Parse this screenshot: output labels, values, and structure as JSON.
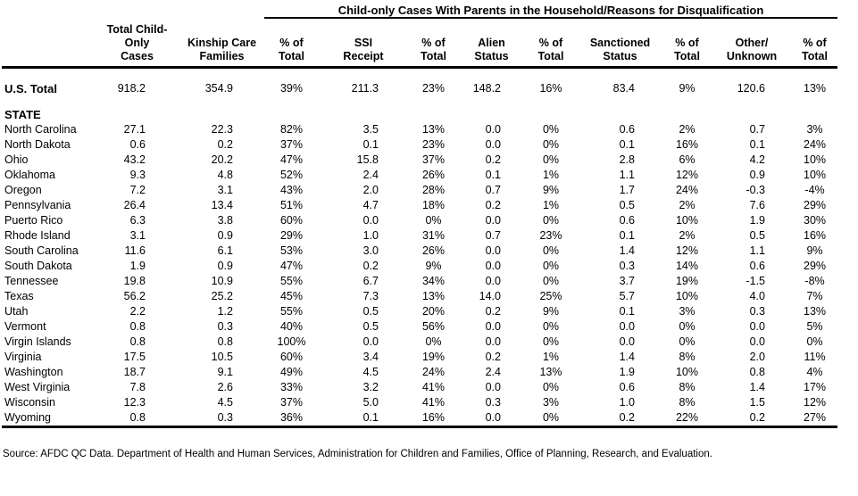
{
  "table": {
    "group_header": "Child-only Cases With Parents in the Household/Reasons for Disqualification",
    "columns": [
      {
        "line1": "",
        "line2": ""
      },
      {
        "line1": "Total Child-Only",
        "line2": "Cases"
      },
      {
        "line1": "Kinship Care",
        "line2": "Families"
      },
      {
        "line1": "% of",
        "line2": "Total"
      },
      {
        "line1": "SSI",
        "line2": "Receipt"
      },
      {
        "line1": "% of",
        "line2": "Total"
      },
      {
        "line1": "Alien",
        "line2": "Status"
      },
      {
        "line1": "% of",
        "line2": "Total"
      },
      {
        "line1": "Sanctioned",
        "line2": "Status"
      },
      {
        "line1": "% of",
        "line2": "Total"
      },
      {
        "line1": "Other/",
        "line2": "Unknown"
      },
      {
        "line1": "% of",
        "line2": "Total"
      }
    ],
    "us_total": {
      "label": "U.S. Total",
      "values": [
        "918.2",
        "354.9",
        "39%",
        "211.3",
        "23%",
        "148.2",
        "16%",
        "83.4",
        "9%",
        "120.6",
        "13%"
      ]
    },
    "section_label": "STATE",
    "rows": [
      {
        "state": "North Carolina",
        "values": [
          "27.1",
          "22.3",
          "82%",
          "3.5",
          "13%",
          "0.0",
          "0%",
          "0.6",
          "2%",
          "0.7",
          "3%"
        ]
      },
      {
        "state": "North Dakota",
        "values": [
          "0.6",
          "0.2",
          "37%",
          "0.1",
          "23%",
          "0.0",
          "0%",
          "0.1",
          "16%",
          "0.1",
          "24%"
        ]
      },
      {
        "state": "Ohio",
        "values": [
          "43.2",
          "20.2",
          "47%",
          "15.8",
          "37%",
          "0.2",
          "0%",
          "2.8",
          "6%",
          "4.2",
          "10%"
        ]
      },
      {
        "state": "Oklahoma",
        "values": [
          "9.3",
          "4.8",
          "52%",
          "2.4",
          "26%",
          "0.1",
          "1%",
          "1.1",
          "12%",
          "0.9",
          "10%"
        ]
      },
      {
        "state": "Oregon",
        "values": [
          "7.2",
          "3.1",
          "43%",
          "2.0",
          "28%",
          "0.7",
          "9%",
          "1.7",
          "24%",
          "-0.3",
          "-4%"
        ]
      },
      {
        "state": "Pennsylvania",
        "values": [
          "26.4",
          "13.4",
          "51%",
          "4.7",
          "18%",
          "0.2",
          "1%",
          "0.5",
          "2%",
          "7.6",
          "29%"
        ]
      },
      {
        "state": "Puerto Rico",
        "values": [
          "6.3",
          "3.8",
          "60%",
          "0.0",
          "0%",
          "0.0",
          "0%",
          "0.6",
          "10%",
          "1.9",
          "30%"
        ]
      },
      {
        "state": "Rhode Island",
        "values": [
          "3.1",
          "0.9",
          "29%",
          "1.0",
          "31%",
          "0.7",
          "23%",
          "0.1",
          "2%",
          "0.5",
          "16%"
        ]
      },
      {
        "state": "South Carolina",
        "values": [
          "11.6",
          "6.1",
          "53%",
          "3.0",
          "26%",
          "0.0",
          "0%",
          "1.4",
          "12%",
          "1.1",
          "9%"
        ]
      },
      {
        "state": "South Dakota",
        "values": [
          "1.9",
          "0.9",
          "47%",
          "0.2",
          "9%",
          "0.0",
          "0%",
          "0.3",
          "14%",
          "0.6",
          "29%"
        ]
      },
      {
        "state": "Tennessee",
        "values": [
          "19.8",
          "10.9",
          "55%",
          "6.7",
          "34%",
          "0.0",
          "0%",
          "3.7",
          "19%",
          "-1.5",
          "-8%"
        ]
      },
      {
        "state": "Texas",
        "values": [
          "56.2",
          "25.2",
          "45%",
          "7.3",
          "13%",
          "14.0",
          "25%",
          "5.7",
          "10%",
          "4.0",
          "7%"
        ]
      },
      {
        "state": "Utah",
        "values": [
          "2.2",
          "1.2",
          "55%",
          "0.5",
          "20%",
          "0.2",
          "9%",
          "0.1",
          "3%",
          "0.3",
          "13%"
        ]
      },
      {
        "state": "Vermont",
        "values": [
          "0.8",
          "0.3",
          "40%",
          "0.5",
          "56%",
          "0.0",
          "0%",
          "0.0",
          "0%",
          "0.0",
          "5%"
        ]
      },
      {
        "state": "Virgin Islands",
        "values": [
          "0.8",
          "0.8",
          "100%",
          "0.0",
          "0%",
          "0.0",
          "0%",
          "0.0",
          "0%",
          "0.0",
          "0%"
        ]
      },
      {
        "state": "Virginia",
        "values": [
          "17.5",
          "10.5",
          "60%",
          "3.4",
          "19%",
          "0.2",
          "1%",
          "1.4",
          "8%",
          "2.0",
          "11%"
        ]
      },
      {
        "state": "Washington",
        "values": [
          "18.7",
          "9.1",
          "49%",
          "4.5",
          "24%",
          "2.4",
          "13%",
          "1.9",
          "10%",
          "0.8",
          "4%"
        ]
      },
      {
        "state": "West Virginia",
        "values": [
          "7.8",
          "2.6",
          "33%",
          "3.2",
          "41%",
          "0.0",
          "0%",
          "0.6",
          "8%",
          "1.4",
          "17%"
        ]
      },
      {
        "state": "Wisconsin",
        "values": [
          "12.3",
          "4.5",
          "37%",
          "5.0",
          "41%",
          "0.3",
          "3%",
          "1.0",
          "8%",
          "1.5",
          "12%"
        ]
      },
      {
        "state": "Wyoming",
        "values": [
          "0.8",
          "0.3",
          "36%",
          "0.1",
          "16%",
          "0.0",
          "0%",
          "0.2",
          "22%",
          "0.2",
          "27%"
        ]
      }
    ]
  },
  "footer": {
    "source": "Source: AFDC QC Data. Department of Health and Human Services, Administration for Children and Families, Office of Planning, Research, and Evaluation."
  }
}
